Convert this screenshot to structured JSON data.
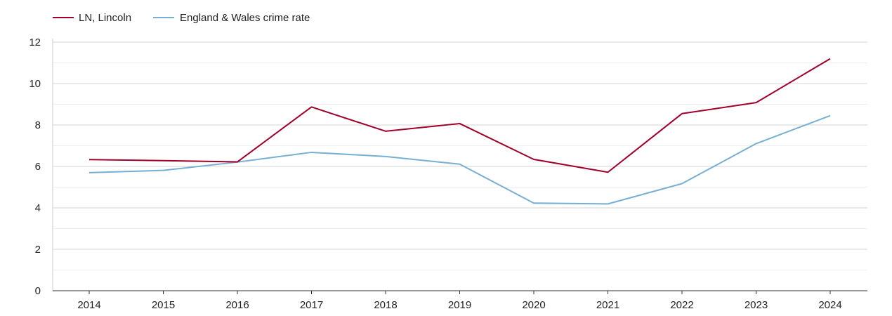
{
  "chart_data": {
    "type": "line",
    "title": "",
    "xlabel": "",
    "ylabel": "",
    "categories": [
      "2014",
      "2015",
      "2016",
      "2017",
      "2018",
      "2019",
      "2020",
      "2021",
      "2022",
      "2023",
      "2024"
    ],
    "ylim": [
      0,
      12
    ],
    "yticks": [
      "0",
      "2",
      "4",
      "6",
      "8",
      "10",
      "12"
    ],
    "grid": true,
    "legend_position": "top-left",
    "series": [
      {
        "name": "LN, Lincoln",
        "color": "#a0002a",
        "values": [
          6.33,
          6.28,
          6.22,
          8.87,
          7.7,
          8.07,
          6.34,
          5.72,
          8.55,
          9.08,
          11.2
        ]
      },
      {
        "name": "England & Wales crime rate",
        "color": "#77aed4",
        "values": [
          5.7,
          5.81,
          6.21,
          6.68,
          6.48,
          6.11,
          4.23,
          4.19,
          5.17,
          7.1,
          8.45
        ]
      }
    ]
  }
}
